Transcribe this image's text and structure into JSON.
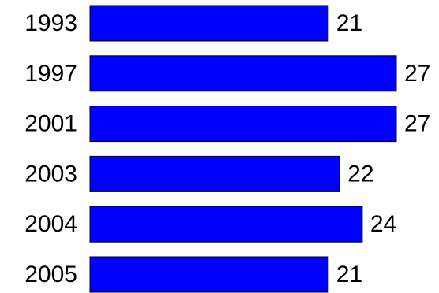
{
  "chart_data": {
    "type": "bar",
    "orientation": "horizontal",
    "categories": [
      "1993",
      "1997",
      "2001",
      "2003",
      "2004",
      "2005"
    ],
    "values": [
      21,
      27,
      27,
      22,
      24,
      21
    ],
    "value_labels": [
      "21",
      "27",
      "27",
      "22",
      "24",
      "21"
    ],
    "xlim": [
      0,
      27
    ],
    "grid": false,
    "legend": "none",
    "colors": {
      "bar_fill": "#0000ff",
      "bar_stroke": "#000000",
      "text": "#000000",
      "background": "#ffffff"
    }
  }
}
